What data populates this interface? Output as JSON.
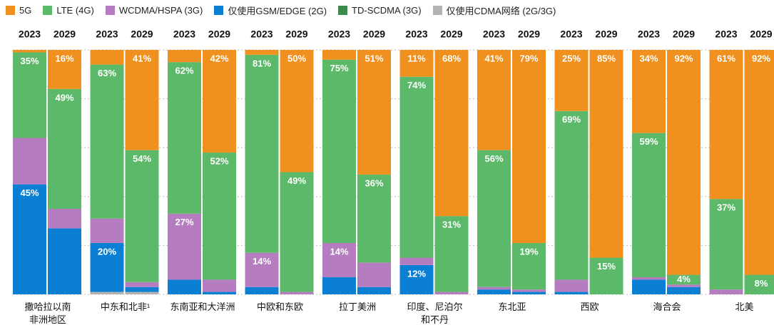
{
  "chart_data": {
    "type": "stacked_bar",
    "categories": [
      "2023",
      "2029",
      "2023",
      "2029",
      "2023",
      "2029",
      "2023",
      "2029",
      "2023",
      "2029",
      "2023",
      "2029",
      "2023",
      "2029",
      "2023",
      "2029",
      "2023",
      "2029",
      "2023",
      "2029"
    ],
    "groups": [
      "撒哈拉以南\n非洲地区",
      "中东和北非¹",
      "东南亚和大洋洲",
      "中欧和东欧",
      "拉丁美洲",
      "印度、尼泊尔\n和不丹",
      "东北亚",
      "西欧",
      "海合会",
      "北美"
    ],
    "ylim": [
      0,
      100
    ],
    "yticks": [
      0,
      20,
      40,
      60,
      80,
      100
    ],
    "grid": true,
    "series": [
      {
        "name": "5G",
        "color": "#f0911f",
        "values": [
          1,
          16,
          6,
          41,
          5,
          42,
          2,
          50,
          4,
          51,
          11,
          68,
          41,
          79,
          25,
          85,
          34,
          92,
          61,
          92
        ],
        "value_labels": [
          null,
          "16%",
          null,
          "41%",
          null,
          "42%",
          null,
          "50%",
          null,
          "51%",
          "11%",
          "68%",
          "41%",
          "79%",
          "25%",
          "85%",
          "34%",
          "92%",
          "61%",
          "92%"
        ]
      },
      {
        "name": "LTE (4G)",
        "color": "#5cb96a",
        "values": [
          35,
          49,
          63,
          54,
          62,
          52,
          81,
          49,
          75,
          36,
          74,
          31,
          56,
          19,
          69,
          15,
          59,
          4,
          37,
          8
        ],
        "value_labels": [
          "35%",
          "49%",
          "63%",
          "54%",
          "62%",
          "52%",
          "81%",
          "49%",
          "75%",
          "36%",
          "74%",
          "31%",
          "56%",
          "19%",
          "69%",
          "15%",
          "59%",
          "4%",
          "37%",
          "8%"
        ]
      },
      {
        "name": "WCDMA/HSPA (3G)",
        "color": "#b57cbf",
        "values": [
          19,
          8,
          10,
          2,
          27,
          5,
          14,
          1,
          14,
          10,
          3,
          1,
          1,
          1,
          5,
          0,
          1,
          1,
          2,
          0
        ],
        "value_labels": [
          null,
          null,
          null,
          null,
          "27%",
          null,
          "14%",
          null,
          "14%",
          null,
          null,
          null,
          null,
          null,
          null,
          null,
          null,
          null,
          null,
          null
        ]
      },
      {
        "name": "仅使用GSM/EDGE (2G)",
        "color": "#0b7fd4",
        "values": [
          45,
          27,
          20,
          2,
          6,
          1,
          3,
          0,
          7,
          3,
          12,
          0,
          2,
          1,
          1,
          0,
          6,
          3,
          0,
          0
        ],
        "value_labels": [
          "45%",
          null,
          "20%",
          null,
          null,
          null,
          null,
          null,
          null,
          null,
          "12%",
          null,
          null,
          null,
          null,
          null,
          null,
          null,
          null,
          null
        ]
      },
      {
        "name": "TD-SCDMA (3G)",
        "color": "#3d8b4c",
        "values": [
          0,
          0,
          0,
          0,
          0,
          0,
          0,
          0,
          0,
          0,
          0,
          0,
          0,
          0,
          0,
          0,
          0,
          0,
          0,
          0
        ]
      },
      {
        "name": "仅使用CDMA网络 (2G/3G)",
        "color": "#b3b3b3",
        "values": [
          0,
          0,
          1,
          1,
          0,
          0,
          0,
          0,
          0,
          0,
          0,
          0,
          0,
          0,
          0,
          0,
          0,
          0,
          0,
          0
        ]
      }
    ]
  }
}
